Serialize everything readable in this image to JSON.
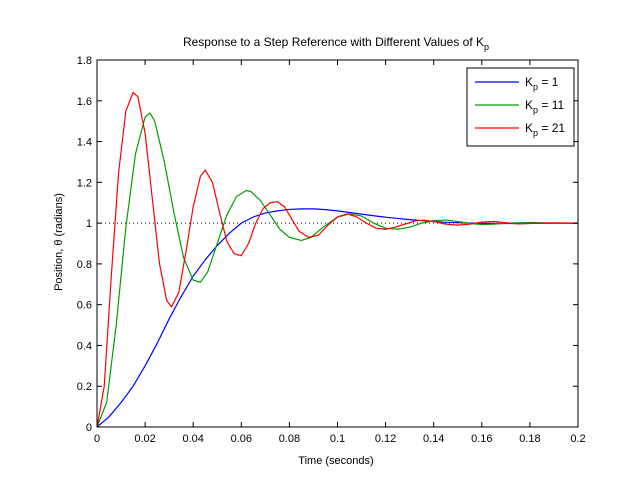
{
  "chart_data": {
    "type": "line",
    "title": {
      "text": "Response to a Step Reference with Different Values of K",
      "subscript": "p"
    },
    "xlabel": "Time (seconds)",
    "ylabel": "Position, θ (radians)",
    "xlim": [
      0,
      0.2
    ],
    "ylim": [
      0,
      1.8
    ],
    "xticks": [
      0,
      0.02,
      0.04,
      0.06,
      0.08,
      0.1,
      0.12,
      0.14,
      0.16,
      0.18,
      0.2
    ],
    "xtick_labels": [
      "0",
      "0.02",
      "0.04",
      "0.06",
      "0.08",
      "0.1",
      "0.12",
      "0.14",
      "0.16",
      "0.18",
      "0.2"
    ],
    "yticks": [
      0,
      0.2,
      0.4,
      0.6,
      0.8,
      1,
      1.2,
      1.4,
      1.6,
      1.8
    ],
    "ytick_labels": [
      "0",
      "0.2",
      "0.4",
      "0.6",
      "0.8",
      "1",
      "1.2",
      "1.4",
      "1.6",
      "1.8"
    ],
    "grid": false,
    "legend_position": "top-right",
    "reference_line": {
      "y": 1,
      "style": "dotted",
      "color": "#000000"
    },
    "series": [
      {
        "name": "K_p = 1",
        "legend_label": {
          "main": "K",
          "sub": "p",
          "suffix": " = 1"
        },
        "color": "#0000ff",
        "x": [
          0,
          0.005,
          0.01,
          0.015,
          0.02,
          0.025,
          0.03,
          0.035,
          0.04,
          0.045,
          0.05,
          0.055,
          0.06,
          0.065,
          0.07,
          0.075,
          0.08,
          0.085,
          0.09,
          0.095,
          0.1,
          0.105,
          0.11,
          0.115,
          0.12,
          0.125,
          0.13,
          0.135,
          0.14,
          0.145,
          0.15,
          0.155,
          0.16,
          0.165,
          0.17,
          0.175,
          0.18,
          0.185,
          0.19,
          0.195,
          0.2
        ],
        "y": [
          0,
          0.05,
          0.12,
          0.2,
          0.3,
          0.41,
          0.53,
          0.64,
          0.74,
          0.82,
          0.89,
          0.95,
          1.0,
          1.03,
          1.05,
          1.06,
          1.067,
          1.07,
          1.07,
          1.066,
          1.06,
          1.052,
          1.044,
          1.036,
          1.029,
          1.023,
          1.017,
          1.012,
          1.008,
          1.004,
          1.002,
          1.0,
          0.999,
          0.998,
          0.998,
          0.998,
          0.999,
          0.999,
          1.0,
          1.0,
          1.0
        ]
      },
      {
        "name": "K_p = 11",
        "legend_label": {
          "main": "K",
          "sub": "p",
          "suffix": " = 11"
        },
        "color": "#00a000",
        "x": [
          0,
          0.004,
          0.008,
          0.012,
          0.016,
          0.02,
          0.022,
          0.024,
          0.028,
          0.032,
          0.036,
          0.04,
          0.043,
          0.046,
          0.05,
          0.054,
          0.058,
          0.062,
          0.064,
          0.068,
          0.072,
          0.076,
          0.08,
          0.085,
          0.089,
          0.094,
          0.1,
          0.105,
          0.11,
          0.115,
          0.12,
          0.125,
          0.13,
          0.135,
          0.14,
          0.145,
          0.15,
          0.155,
          0.16,
          0.165,
          0.17,
          0.18,
          0.19,
          0.2
        ],
        "y": [
          0,
          0.12,
          0.5,
          0.98,
          1.34,
          1.52,
          1.54,
          1.5,
          1.3,
          1.05,
          0.83,
          0.72,
          0.71,
          0.76,
          0.9,
          1.04,
          1.13,
          1.16,
          1.155,
          1.11,
          1.04,
          0.97,
          0.93,
          0.915,
          0.93,
          0.98,
          1.03,
          1.045,
          1.035,
          1.0,
          0.975,
          0.97,
          0.98,
          1.0,
          1.012,
          1.015,
          1.008,
          0.998,
          0.993,
          0.995,
          1.0,
          1.003,
          1.0,
          1.0
        ]
      },
      {
        "name": "K_p = 21",
        "legend_label": {
          "main": "K",
          "sub": "p",
          "suffix": " = 21"
        },
        "color": "#ff0000",
        "x": [
          0,
          0.003,
          0.006,
          0.009,
          0.012,
          0.015,
          0.017,
          0.02,
          0.023,
          0.026,
          0.029,
          0.031,
          0.034,
          0.037,
          0.04,
          0.043,
          0.045,
          0.048,
          0.051,
          0.054,
          0.057,
          0.06,
          0.063,
          0.066,
          0.069,
          0.072,
          0.075,
          0.078,
          0.081,
          0.084,
          0.088,
          0.092,
          0.096,
          0.1,
          0.104,
          0.108,
          0.112,
          0.116,
          0.12,
          0.124,
          0.128,
          0.132,
          0.136,
          0.14,
          0.145,
          0.15,
          0.155,
          0.16,
          0.165,
          0.17,
          0.175,
          0.18,
          0.19,
          0.2
        ],
        "y": [
          0,
          0.2,
          0.75,
          1.25,
          1.55,
          1.64,
          1.62,
          1.44,
          1.12,
          0.8,
          0.62,
          0.59,
          0.66,
          0.86,
          1.08,
          1.23,
          1.26,
          1.2,
          1.05,
          0.91,
          0.85,
          0.84,
          0.9,
          1.0,
          1.07,
          1.1,
          1.105,
          1.08,
          1.02,
          0.96,
          0.93,
          0.94,
          0.99,
          1.03,
          1.045,
          1.03,
          1.0,
          0.975,
          0.97,
          0.98,
          0.995,
          1.01,
          1.015,
          1.008,
          0.995,
          0.99,
          0.995,
          1.005,
          1.008,
          1.002,
          0.996,
          0.998,
          1.001,
          1.0
        ]
      }
    ]
  }
}
